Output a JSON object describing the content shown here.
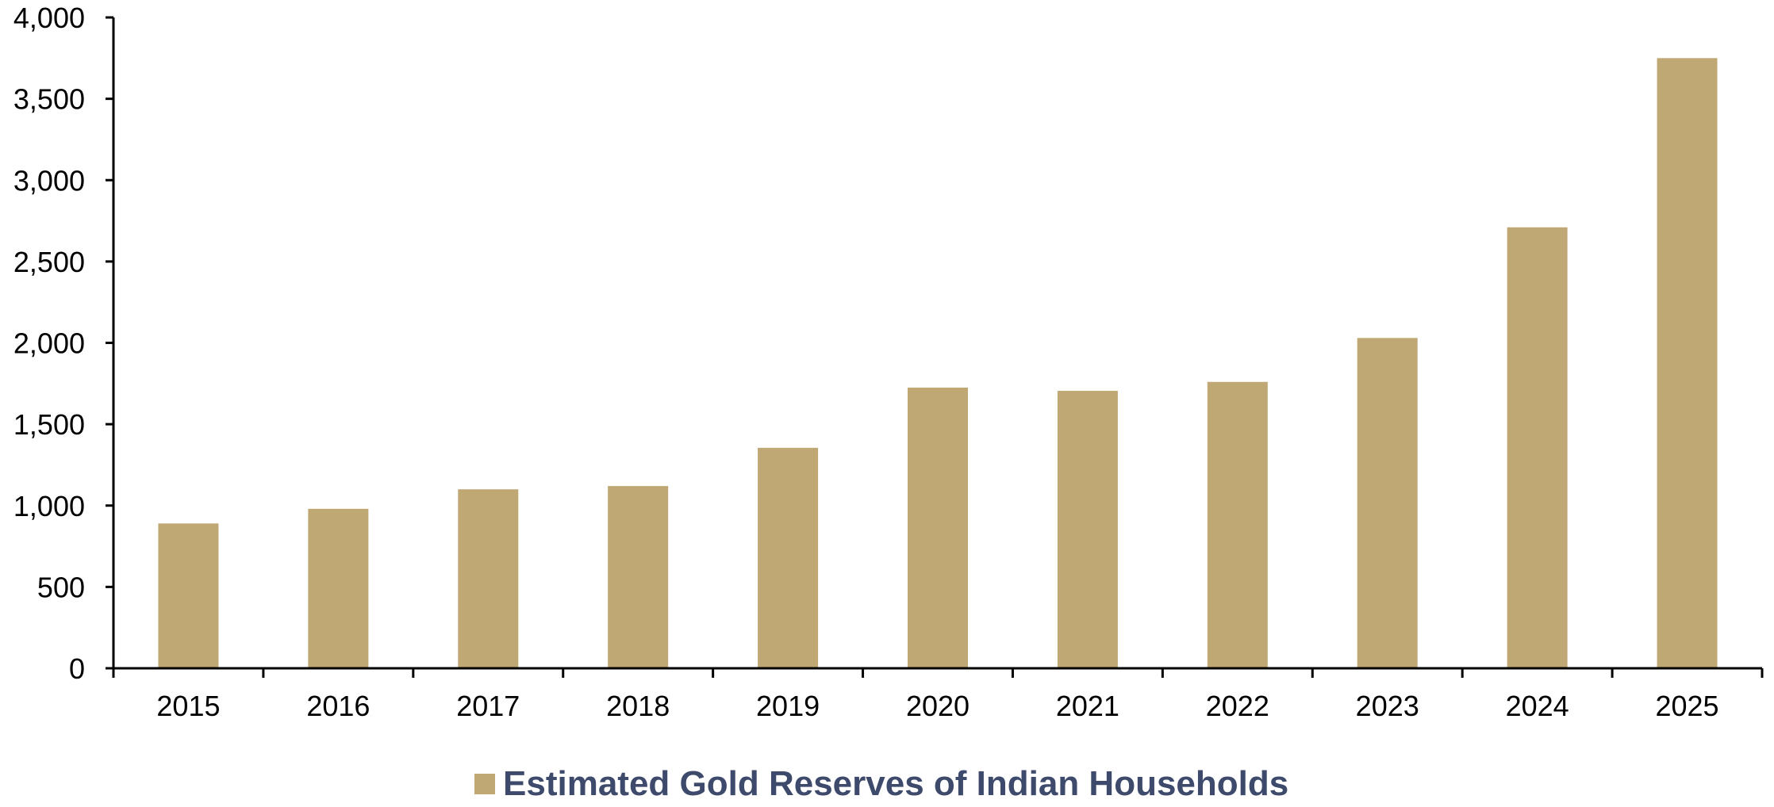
{
  "chart_data": {
    "type": "bar",
    "categories": [
      "2015",
      "2016",
      "2017",
      "2018",
      "2019",
      "2020",
      "2021",
      "2022",
      "2023",
      "2024",
      "2025"
    ],
    "series": [
      {
        "name": "Estimated Gold Reserves of Indian Households",
        "values": [
          890,
          980,
          1100,
          1120,
          1355,
          1725,
          1705,
          1760,
          2030,
          2710,
          3750
        ]
      }
    ],
    "title": "",
    "xlabel": "",
    "ylabel": "",
    "ylim": [
      0,
      4000
    ],
    "yticks": [
      0,
      500,
      1000,
      1500,
      2000,
      2500,
      3000,
      3500,
      4000
    ],
    "ytick_labels": [
      "0",
      "500",
      "1,000",
      "1,500",
      "2,000",
      "2,500",
      "3,000",
      "3,500",
      "4,000"
    ],
    "grid": false,
    "legend_position": "bottom-center",
    "colors": {
      "bar": "#BFA874",
      "legend_text": "#3D4A6B",
      "axis": "#000000"
    }
  }
}
